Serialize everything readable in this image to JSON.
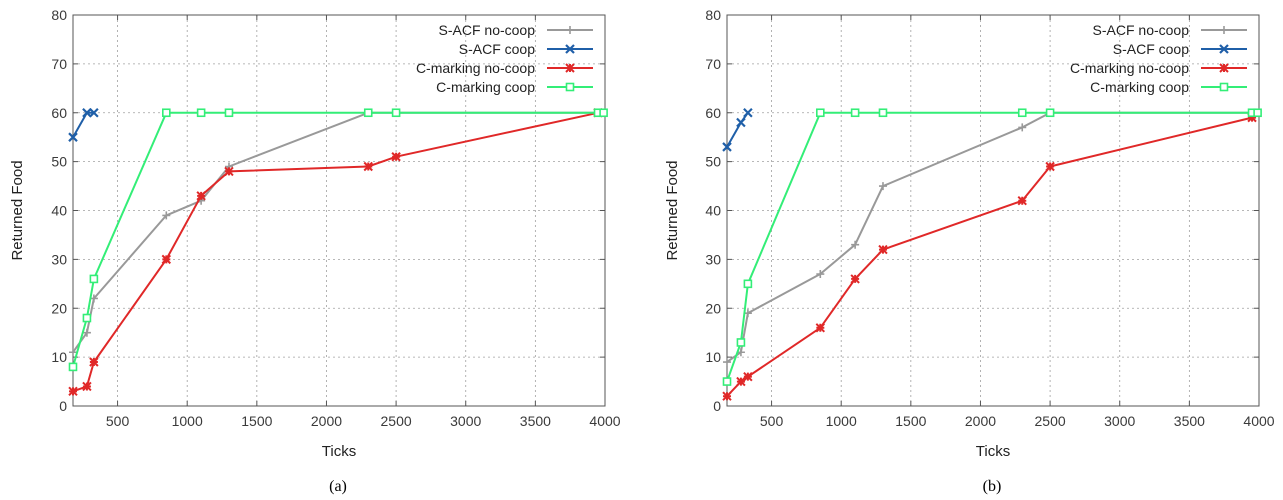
{
  "chart_data": [
    {
      "type": "line",
      "caption": "(a)",
      "xlabel": "Ticks",
      "ylabel": "Returned Food",
      "xlim": [
        180,
        4000
      ],
      "ylim": [
        0,
        80
      ],
      "xticks": [
        500,
        1000,
        1500,
        2000,
        2500,
        3000,
        3500,
        4000
      ],
      "yticks": [
        0,
        10,
        20,
        30,
        40,
        50,
        60,
        70,
        80
      ],
      "grid": true,
      "legend": "top-right",
      "series": [
        {
          "name": "S-ACF no-coop",
          "color": "#999999",
          "marker": "plus",
          "x": [
            180,
            280,
            330,
            850,
            1100,
            1300,
            2300,
            2500,
            3950
          ],
          "y": [
            11,
            15,
            22,
            39,
            42,
            49,
            60,
            60,
            60
          ]
        },
        {
          "name": "S-ACF coop",
          "color": "#1f5fa8",
          "marker": "x",
          "x": [
            180,
            280,
            330
          ],
          "y": [
            55,
            60,
            60
          ]
        },
        {
          "name": "C-marking no-coop",
          "color": "#e02828",
          "marker": "star",
          "x": [
            180,
            280,
            330,
            850,
            1100,
            1300,
            2300,
            2500,
            3950
          ],
          "y": [
            3,
            4,
            9,
            30,
            43,
            48,
            49,
            51,
            60
          ]
        },
        {
          "name": "C-marking coop",
          "color": "#33ee77",
          "marker": "square",
          "x": [
            180,
            280,
            330,
            850,
            1100,
            1300,
            2300,
            2500,
            3950,
            3990
          ],
          "y": [
            8,
            18,
            26,
            60,
            60,
            60,
            60,
            60,
            60,
            60
          ]
        }
      ]
    },
    {
      "type": "line",
      "caption": "(b)",
      "xlabel": "Ticks",
      "ylabel": "Returned Food",
      "xlim": [
        180,
        4000
      ],
      "ylim": [
        0,
        80
      ],
      "xticks": [
        500,
        1000,
        1500,
        2000,
        2500,
        3000,
        3500,
        4000
      ],
      "yticks": [
        0,
        10,
        20,
        30,
        40,
        50,
        60,
        70,
        80
      ],
      "grid": true,
      "legend": "top-right",
      "series": [
        {
          "name": "S-ACF no-coop",
          "color": "#999999",
          "marker": "plus",
          "x": [
            180,
            280,
            330,
            850,
            1100,
            1300,
            2300,
            2500,
            3950
          ],
          "y": [
            9,
            11,
            19,
            27,
            33,
            45,
            57,
            60,
            60
          ]
        },
        {
          "name": "S-ACF coop",
          "color": "#1f5fa8",
          "marker": "x",
          "x": [
            180,
            280,
            330
          ],
          "y": [
            53,
            58,
            60
          ]
        },
        {
          "name": "C-marking no-coop",
          "color": "#e02828",
          "marker": "star",
          "x": [
            180,
            280,
            330,
            850,
            1100,
            1300,
            2300,
            2500,
            3950
          ],
          "y": [
            2,
            5,
            6,
            16,
            26,
            32,
            42,
            49,
            59
          ]
        },
        {
          "name": "C-marking coop",
          "color": "#33ee77",
          "marker": "square",
          "x": [
            180,
            280,
            330,
            850,
            1100,
            1300,
            2300,
            2500,
            3950,
            3990
          ],
          "y": [
            5,
            13,
            25,
            60,
            60,
            60,
            60,
            60,
            60,
            60
          ]
        }
      ]
    }
  ]
}
